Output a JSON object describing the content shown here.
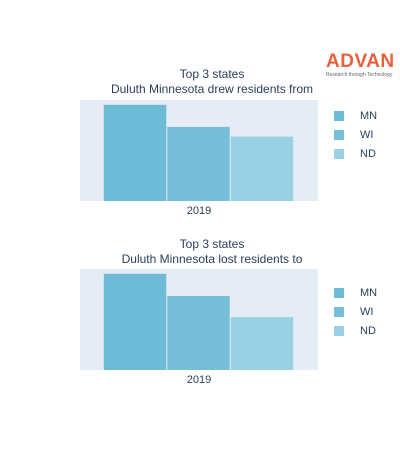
{
  "logo": {
    "name": "ADVAN",
    "tagline": "Research through Technology"
  },
  "chart_data": [
    {
      "type": "bar",
      "title": "Top 3 states",
      "subtitle": "Duluth Minnesota drew residents from",
      "categories": [
        "2019"
      ],
      "series": [
        {
          "name": "MN",
          "values": [
            100
          ],
          "color": "#6dbbd6"
        },
        {
          "name": "WI",
          "values": [
            77
          ],
          "color": "#77bfd8"
        },
        {
          "name": "ND",
          "values": [
            67
          ],
          "color": "#9ad0e3"
        }
      ],
      "ylim": [
        0,
        105
      ],
      "grid": false,
      "legend": "right",
      "plot_bg": "#e5ecf6"
    },
    {
      "type": "bar",
      "title": "Top 3 states",
      "subtitle": "Duluth Minnesota lost residents to",
      "categories": [
        "2019"
      ],
      "series": [
        {
          "name": "MN",
          "values": [
            100
          ],
          "color": "#6dbbd6"
        },
        {
          "name": "WI",
          "values": [
            77
          ],
          "color": "#77bfd8"
        },
        {
          "name": "ND",
          "values": [
            55
          ],
          "color": "#9ad0e3"
        }
      ],
      "ylim": [
        0,
        105
      ],
      "grid": false,
      "legend": "right",
      "plot_bg": "#e5ecf6"
    }
  ]
}
